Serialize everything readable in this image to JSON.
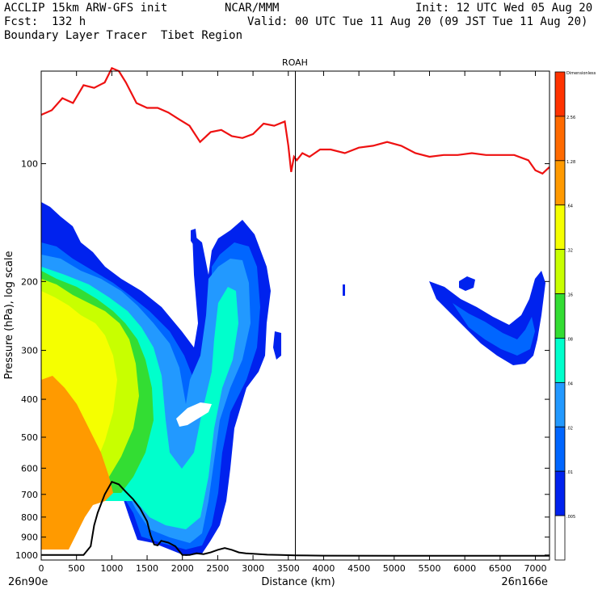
{
  "header": {
    "left_line1": "ACCLIP 15km ARW-GFS init",
    "center_line1": "NCAR/MMM",
    "right_line1": "Init: 12 UTC Wed 05 Aug 20",
    "left_line2": "Fcst:  132 h",
    "right_line2": "Valid: 00 UTC Tue 11 Aug 20 (09 JST Tue 11 Aug 20)",
    "left_line3": "Boundary Layer Tracer  Tibet Region"
  },
  "chart_data": {
    "type": "heatmap",
    "title": "ROAH",
    "xlabel": "Distance (km)",
    "ylabel": "Pressure (hPa), log scale",
    "xlim": [
      0,
      7200
    ],
    "ylim": [
      1030,
      58
    ],
    "y_scale": "log",
    "x_ticks": [
      0,
      500,
      1000,
      1500,
      2000,
      2500,
      3000,
      3500,
      4000,
      4500,
      5000,
      5500,
      6000,
      6500,
      7000
    ],
    "y_ticks": [
      100,
      200,
      300,
      400,
      500,
      600,
      700,
      800,
      900,
      1000
    ],
    "x_start_label": "26n90e",
    "x_end_label": "26n166e",
    "vertical_marker_x": 3600,
    "colorbar": {
      "levels": [
        "Dimensionless",
        "2.56",
        "1.28",
        ".64",
        ".32",
        ".16",
        ".08",
        ".04",
        ".02",
        ".01",
        ".005"
      ],
      "colors": [
        "#ff3300",
        "#ff6a00",
        "#ff9a00",
        "#f5ff00",
        "#c8ff00",
        "#33dd33",
        "#00ffcc",
        "#2299ff",
        "#0066ff",
        "#0022ee",
        "#ffffff"
      ]
    },
    "series": [
      {
        "name": "Tropopause",
        "color": "#ee1111",
        "x": [
          0,
          150,
          300,
          450,
          600,
          750,
          900,
          1000,
          1100,
          1200,
          1350,
          1500,
          1650,
          1800,
          1950,
          2100,
          2250,
          2400,
          2550,
          2700,
          2850,
          3000,
          3150,
          3300,
          3450,
          3500,
          3540,
          3580,
          3620,
          3700,
          3800,
          3950,
          4100,
          4300,
          4500,
          4700,
          4900,
          5100,
          5300,
          5500,
          5700,
          5900,
          6100,
          6300,
          6500,
          6700,
          6900,
          7000,
          7100,
          7200
        ],
        "y": [
          75,
          73,
          68,
          70,
          63,
          64,
          62,
          57,
          58,
          62,
          70,
          72,
          72,
          74,
          77,
          80,
          88,
          83,
          82,
          85,
          86,
          84,
          79,
          80,
          78,
          90,
          105,
          96,
          98,
          94,
          96,
          92,
          92,
          94,
          91,
          90,
          88,
          90,
          94,
          96,
          95,
          95,
          94,
          95,
          95,
          95,
          98,
          104,
          106,
          102
        ]
      },
      {
        "name": "Terrain",
        "color": "#000000",
        "x": [
          0,
          500,
          600,
          700,
          750,
          800,
          900,
          1000,
          1100,
          1200,
          1300,
          1400,
          1500,
          1550,
          1600,
          1650,
          1700,
          1800,
          1900,
          2000,
          2100,
          2200,
          2300,
          2400,
          2500,
          2600,
          2700,
          2800,
          2900,
          3000,
          3200,
          3400,
          3600,
          4000,
          5000,
          6000,
          7200
        ],
        "y": [
          1000,
          1000,
          1000,
          950,
          840,
          780,
          700,
          650,
          660,
          690,
          720,
          760,
          820,
          890,
          940,
          945,
          920,
          930,
          950,
          1000,
          1000,
          990,
          995,
          985,
          970,
          960,
          970,
          985,
          990,
          993,
          998,
          1000,
          1002,
          1004,
          1005,
          1005,
          1005
        ]
      }
    ]
  }
}
